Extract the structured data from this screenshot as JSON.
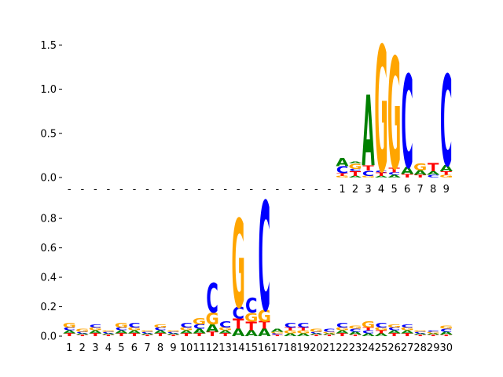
{
  "colors": {
    "A": "#008000",
    "C": "#0000ff",
    "G": "#ffa500",
    "T": "#ff0000"
  },
  "chart_data": [
    {
      "type": "sequence-logo",
      "ylim": [
        0,
        1.6
      ],
      "yticks": [
        "0.0",
        "0.5",
        "1.0",
        "1.5"
      ],
      "yticks_values": [
        0,
        0.5,
        1.0,
        1.5
      ],
      "xticks": [
        "-",
        "-",
        "-",
        "-",
        "-",
        "-",
        "-",
        "-",
        "-",
        "-",
        "-",
        "-",
        "-",
        "-",
        "-",
        "-",
        "-",
        "-",
        "-",
        "-",
        "-",
        "1",
        "2",
        "3",
        "4",
        "5",
        "6",
        "7",
        "8",
        "9"
      ],
      "positions": [
        [],
        [],
        [],
        [],
        [],
        [],
        [],
        [],
        [],
        [],
        [],
        [],
        [],
        [],
        [],
        [],
        [],
        [],
        [],
        [],
        [],
        [
          [
            "G",
            0.02
          ],
          [
            "T",
            0.03
          ],
          [
            "C",
            0.08
          ],
          [
            "A",
            0.09
          ]
        ],
        [
          [
            "A",
            0.02
          ],
          [
            "T",
            0.05
          ],
          [
            "C",
            0.03
          ],
          [
            "G",
            0.06
          ],
          [
            "A",
            0.02
          ]
        ],
        [
          [
            "G",
            0.02
          ],
          [
            "C",
            0.06
          ],
          [
            "T",
            0.06
          ],
          [
            "A",
            0.8
          ]
        ],
        [
          [
            "A",
            0.02
          ],
          [
            "T",
            0.04
          ],
          [
            "C",
            0.02
          ],
          [
            "G",
            1.42
          ]
        ],
        [
          [
            "A",
            0.03
          ],
          [
            "C",
            0.03
          ],
          [
            "T",
            0.05
          ],
          [
            "G",
            1.26
          ]
        ],
        [
          [
            "T",
            0.04
          ],
          [
            "A",
            0.08
          ],
          [
            "C",
            1.05
          ]
        ],
        [
          [
            "T",
            0.03
          ],
          [
            "A",
            0.05
          ],
          [
            "G",
            0.08
          ]
        ],
        [
          [
            "C",
            0.03
          ],
          [
            "A",
            0.04
          ],
          [
            "T",
            0.09
          ]
        ],
        [
          [
            "G",
            0.03
          ],
          [
            "T",
            0.04
          ],
          [
            "A",
            0.07
          ],
          [
            "C",
            1.03
          ]
        ]
      ]
    },
    {
      "type": "sequence-logo",
      "ylim": [
        0,
        0.95
      ],
      "yticks": [
        "0.0",
        "0.2",
        "0.4",
        "0.6",
        "0.8"
      ],
      "yticks_values": [
        0,
        0.2,
        0.4,
        0.6,
        0.8
      ],
      "xticks": [
        "1",
        "2",
        "3",
        "4",
        "5",
        "6",
        "7",
        "8",
        "9",
        "10",
        "11",
        "12",
        "13",
        "14",
        "15",
        "16",
        "17",
        "18",
        "19",
        "20",
        "21",
        "22",
        "23",
        "24",
        "25",
        "26",
        "27",
        "28",
        "29",
        "30"
      ],
      "positions": [
        [
          [
            "T",
            0.02
          ],
          [
            "A",
            0.02
          ],
          [
            "C",
            0.02
          ],
          [
            "G",
            0.03
          ]
        ],
        [
          [
            "T",
            0.01
          ],
          [
            "A",
            0.01
          ],
          [
            "C",
            0.01
          ],
          [
            "G",
            0.02
          ]
        ],
        [
          [
            "T",
            0.02
          ],
          [
            "A",
            0.02
          ],
          [
            "G",
            0.02
          ],
          [
            "C",
            0.02
          ]
        ],
        [
          [
            "T",
            0.01
          ],
          [
            "A",
            0.01
          ],
          [
            "C",
            0.01
          ],
          [
            "G",
            0.01
          ]
        ],
        [
          [
            "T",
            0.02
          ],
          [
            "A",
            0.02
          ],
          [
            "C",
            0.02
          ],
          [
            "G",
            0.03
          ]
        ],
        [
          [
            "T",
            0.02
          ],
          [
            "A",
            0.02
          ],
          [
            "G",
            0.02
          ],
          [
            "C",
            0.03
          ]
        ],
        [
          [
            "T",
            0.01
          ],
          [
            "A",
            0.01
          ],
          [
            "C",
            0.01
          ],
          [
            "G",
            0.01
          ]
        ],
        [
          [
            "T",
            0.02
          ],
          [
            "A",
            0.02
          ],
          [
            "C",
            0.02
          ],
          [
            "G",
            0.02
          ]
        ],
        [
          [
            "T",
            0.01
          ],
          [
            "A",
            0.01
          ],
          [
            "C",
            0.01
          ],
          [
            "G",
            0.01
          ]
        ],
        [
          [
            "T",
            0.02
          ],
          [
            "A",
            0.02
          ],
          [
            "G",
            0.02
          ],
          [
            "C",
            0.03
          ]
        ],
        [
          [
            "T",
            0.02
          ],
          [
            "A",
            0.03
          ],
          [
            "C",
            0.03
          ],
          [
            "G",
            0.04
          ]
        ],
        [
          [
            "T",
            0.03
          ],
          [
            "A",
            0.05
          ],
          [
            "G",
            0.08
          ],
          [
            "C",
            0.2
          ]
        ],
        [
          [
            "T",
            0.02
          ],
          [
            "A",
            0.02
          ],
          [
            "G",
            0.02
          ],
          [
            "C",
            0.04
          ]
        ],
        [
          [
            "A",
            0.05
          ],
          [
            "T",
            0.07
          ],
          [
            "C",
            0.08
          ],
          [
            "G",
            0.6
          ]
        ],
        [
          [
            "A",
            0.04
          ],
          [
            "T",
            0.06
          ],
          [
            "G",
            0.06
          ],
          [
            "C",
            0.1
          ]
        ],
        [
          [
            "A",
            0.05
          ],
          [
            "T",
            0.05
          ],
          [
            "G",
            0.08
          ],
          [
            "C",
            0.74
          ]
        ],
        [
          [
            "T",
            0.01
          ],
          [
            "C",
            0.01
          ],
          [
            "G",
            0.01
          ],
          [
            "A",
            0.02
          ]
        ],
        [
          [
            "A",
            0.02
          ],
          [
            "G",
            0.02
          ],
          [
            "T",
            0.02
          ],
          [
            "C",
            0.03
          ]
        ],
        [
          [
            "A",
            0.02
          ],
          [
            "G",
            0.02
          ],
          [
            "T",
            0.02
          ],
          [
            "C",
            0.03
          ]
        ],
        [
          [
            "T",
            0.01
          ],
          [
            "A",
            0.01
          ],
          [
            "C",
            0.01
          ],
          [
            "G",
            0.02
          ]
        ],
        [
          [
            "T",
            0.01
          ],
          [
            "A",
            0.01
          ],
          [
            "G",
            0.01
          ],
          [
            "C",
            0.02
          ]
        ],
        [
          [
            "T",
            0.02
          ],
          [
            "A",
            0.02
          ],
          [
            "G",
            0.02
          ],
          [
            "C",
            0.03
          ]
        ],
        [
          [
            "T",
            0.01
          ],
          [
            "A",
            0.02
          ],
          [
            "C",
            0.02
          ],
          [
            "G",
            0.02
          ]
        ],
        [
          [
            "A",
            0.02
          ],
          [
            "C",
            0.02
          ],
          [
            "T",
            0.02
          ],
          [
            "G",
            0.04
          ]
        ],
        [
          [
            "A",
            0.02
          ],
          [
            "T",
            0.02
          ],
          [
            "G",
            0.02
          ],
          [
            "C",
            0.03
          ]
        ],
        [
          [
            "T",
            0.02
          ],
          [
            "A",
            0.02
          ],
          [
            "C",
            0.02
          ],
          [
            "G",
            0.02
          ]
        ],
        [
          [
            "T",
            0.02
          ],
          [
            "A",
            0.02
          ],
          [
            "G",
            0.02
          ],
          [
            "C",
            0.02
          ]
        ],
        [
          [
            "T",
            0.01
          ],
          [
            "A",
            0.01
          ],
          [
            "C",
            0.01
          ],
          [
            "G",
            0.01
          ]
        ],
        [
          [
            "T",
            0.01
          ],
          [
            "A",
            0.01
          ],
          [
            "G",
            0.01
          ],
          [
            "C",
            0.01
          ]
        ],
        [
          [
            "T",
            0.01
          ],
          [
            "A",
            0.02
          ],
          [
            "C",
            0.02
          ],
          [
            "G",
            0.02
          ]
        ]
      ]
    }
  ]
}
